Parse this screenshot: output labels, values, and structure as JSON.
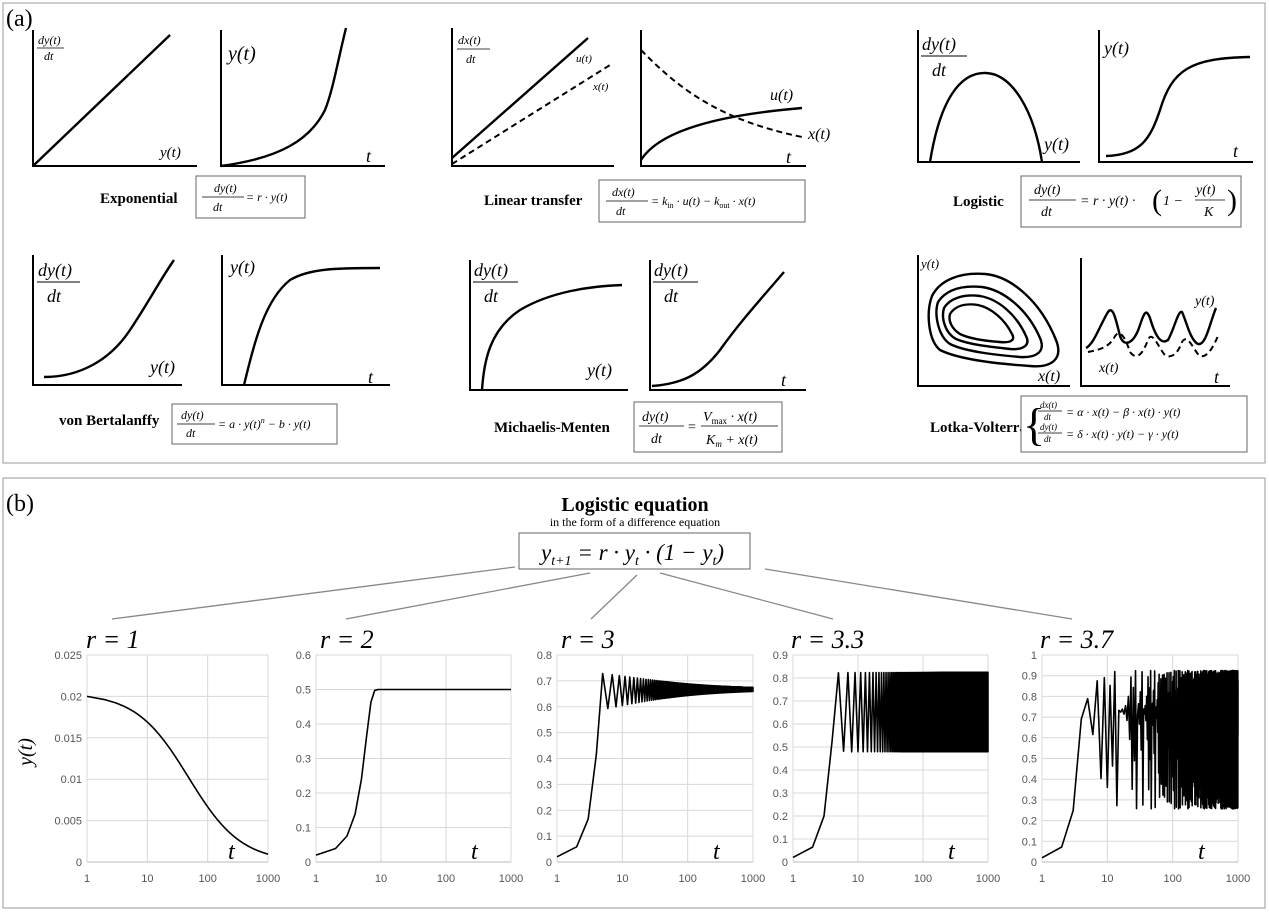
{
  "panel_a": {
    "label": "(a)",
    "models": [
      {
        "id": "exponential",
        "name": "Exponential",
        "dy_label": [
          "dy(t)",
          "dt"
        ],
        "dy_x": "y(t)",
        "y_label": "y(t)",
        "y_x": "t"
      },
      {
        "id": "linear-transfer",
        "name": "Linear transfer",
        "dy_label": [
          "dx(t)",
          "dt"
        ],
        "dy_series": [
          "u(t)",
          "x(t)"
        ],
        "y_series": [
          "u(t)",
          "x(t)"
        ],
        "y_x": "t"
      },
      {
        "id": "logistic",
        "name": "Logistic",
        "dy_label": [
          "dy(t)",
          "dt"
        ],
        "dy_x": "y(t)",
        "y_label": "y(t)",
        "y_x": "t"
      },
      {
        "id": "von-bertalanffy",
        "name": "von Bertalanffy",
        "dy_label": [
          "dy(t)",
          "dt"
        ],
        "dy_x": "y(t)",
        "y_label": "y(t)",
        "y_x": "t"
      },
      {
        "id": "michaelis-menten",
        "name": "Michaelis-Menten",
        "dy_label": [
          "dy(t)",
          "dt"
        ],
        "dy_x": "y(t)",
        "y_label": "dy(t) / dt",
        "y_x": "t"
      },
      {
        "id": "lotka-volterra",
        "name": "Lotka-Volterra",
        "phase_y": "y(t)",
        "phase_x": "x(t)",
        "y_series": [
          "y(t)",
          "x(t)"
        ],
        "y_x": "t"
      }
    ],
    "equations": {
      "exponential": [
        "dy(t)",
        "dt",
        "= r · y(t)"
      ],
      "linear_transfer": [
        "dx(t)",
        "dt",
        "= k",
        "in",
        " · u(t) − k",
        "out",
        " · x(t)"
      ],
      "logistic": [
        "dy(t)",
        "dt",
        "= r · y(t) · ",
        "(",
        "1 − ",
        "y(t)",
        "K",
        ")"
      ],
      "von_bertalanffy": [
        "dy(t)",
        "dt",
        "= a · y(t)",
        "n",
        " − b · y(t)"
      ],
      "michaelis_menten": [
        "dy(t)",
        "dt",
        "=",
        "V",
        "max",
        " · x(t)",
        "K",
        "m",
        " + x(t)"
      ],
      "lotka_volterra": [
        "dx(t)",
        "dt",
        "= α · x(t) − β · x(t) · y(t)",
        "dy(t)",
        "dt",
        "= δ · x(t) · y(t) − γ · y(t)"
      ]
    }
  },
  "panel_b": {
    "label": "(b)",
    "title": "Logistic equation",
    "subtitle": "in the form of a difference equation",
    "equation": [
      "y",
      "t+1",
      " = r · y",
      "t",
      " · (1 − y",
      "t",
      ")"
    ],
    "y_axis_label": "y(t)",
    "x_axis_label": "t"
  },
  "chart_data": [
    {
      "type": "line",
      "title": "r = 1",
      "r": 1,
      "xscale": "log",
      "xlim": [
        1,
        1000
      ],
      "x_ticks": [
        "1",
        "10",
        "100",
        "1000"
      ],
      "ylim": [
        0,
        0.025
      ],
      "y_ticks": [
        "0.025",
        "0.02",
        "0.015",
        "0.01",
        "0.005",
        "0"
      ],
      "y0": 0.02,
      "xlabel": "t",
      "ylabel": "y(t)"
    },
    {
      "type": "line",
      "title": "r = 2",
      "r": 2,
      "xscale": "log",
      "xlim": [
        1,
        1000
      ],
      "x_ticks": [
        "1",
        "10",
        "100",
        "1000"
      ],
      "ylim": [
        0,
        0.6
      ],
      "y_ticks": [
        "0.6",
        "0.5",
        "0.4",
        "0.3",
        "0.2",
        "0.1",
        "0"
      ],
      "y0": 0.02,
      "xlabel": "t"
    },
    {
      "type": "line",
      "title": "r = 3",
      "r": 3,
      "xscale": "log",
      "xlim": [
        1,
        1000
      ],
      "x_ticks": [
        "1",
        "10",
        "100",
        "1000"
      ],
      "ylim": [
        0,
        0.8
      ],
      "y_ticks": [
        "0.8",
        "0.7",
        "0.6",
        "0.5",
        "0.4",
        "0.3",
        "0.2",
        "0.1",
        "0"
      ],
      "y0": 0.02,
      "xlabel": "t"
    },
    {
      "type": "line",
      "title": "r = 3.3",
      "r": 3.3,
      "xscale": "log",
      "xlim": [
        1,
        1000
      ],
      "x_ticks": [
        "1",
        "10",
        "100",
        "1000"
      ],
      "ylim": [
        0,
        0.9
      ],
      "y_ticks": [
        "0.9",
        "0.8",
        "0.7",
        "0.6",
        "0.5",
        "0.4",
        "0.3",
        "0.2",
        "0.1",
        "0"
      ],
      "y0": 0.02,
      "xlabel": "t"
    },
    {
      "type": "line",
      "title": "r = 3.7",
      "r": 3.7,
      "xscale": "log",
      "xlim": [
        1,
        1000
      ],
      "x_ticks": [
        "1",
        "10",
        "100",
        "1000"
      ],
      "ylim": [
        0,
        1
      ],
      "y_ticks": [
        "1",
        "0.9",
        "0.8",
        "0.7",
        "0.6",
        "0.5",
        "0.4",
        "0.3",
        "0.2",
        "0.1",
        "0"
      ],
      "y0": 0.02,
      "xlabel": "t"
    }
  ]
}
